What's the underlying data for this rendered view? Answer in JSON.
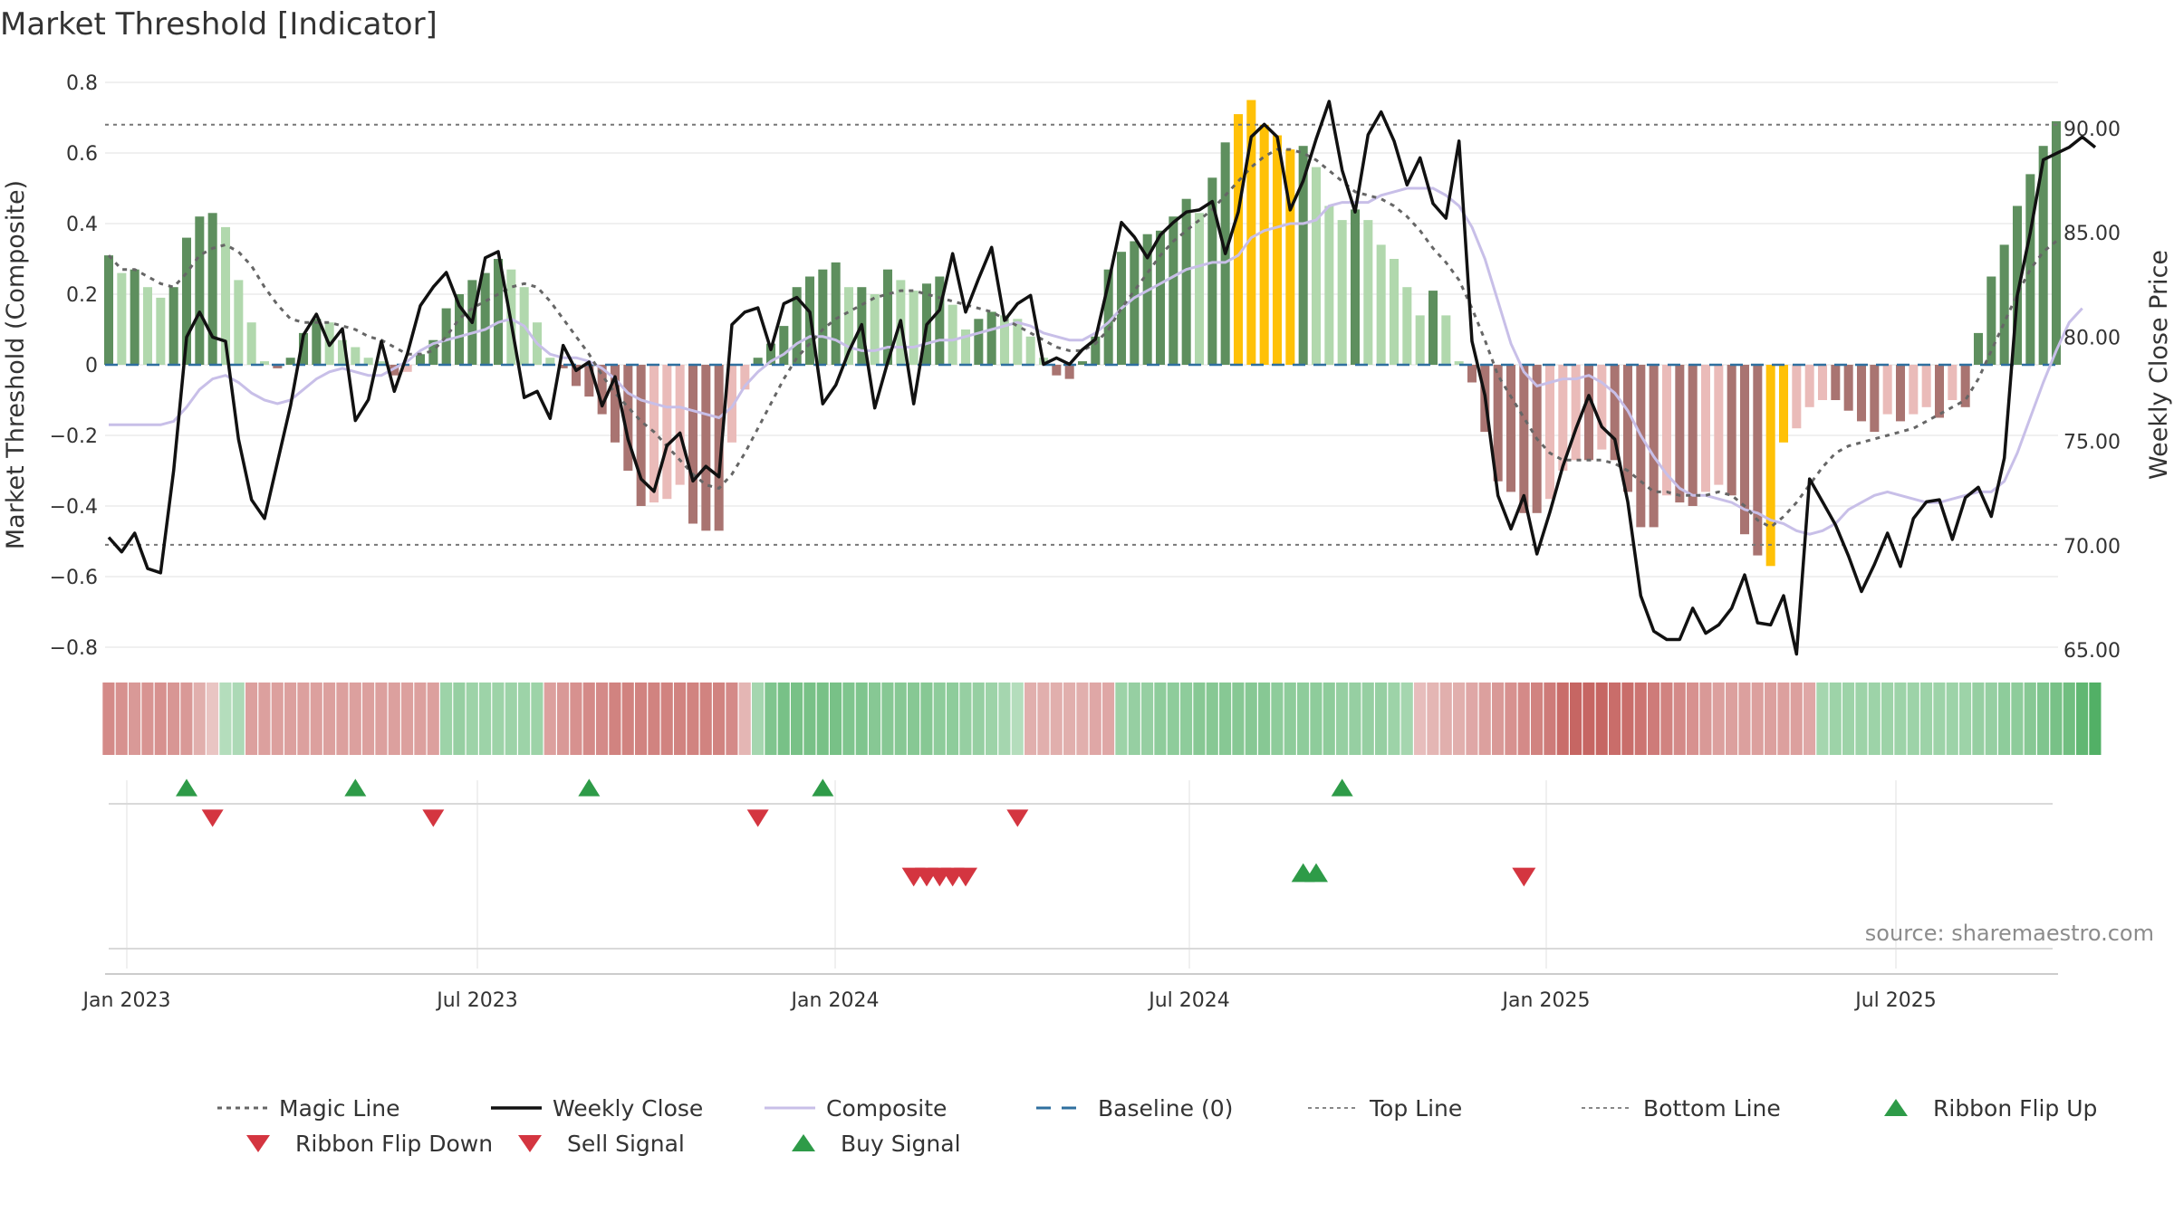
{
  "chart_data": {
    "type": "combo-bar-line",
    "title": "Market Threshold [Indicator]",
    "ylabel_left": "Market Threshold (Composite)",
    "ylabel_right": "Weekly Close Price",
    "source": "source: sharemaestro.com",
    "ylim_left": [
      -0.8,
      0.8
    ],
    "ylim_right": [
      65,
      92
    ],
    "left_ticks": [
      "0.8",
      "0.6",
      "0.4",
      "0.2",
      "0",
      "−0.2",
      "−0.4",
      "−0.6",
      "−0.8"
    ],
    "right_ticks": [
      "90.00",
      "85.00",
      "80.00",
      "75.00",
      "70.00",
      "65.00"
    ],
    "x_ticks": [
      "Jan 2023",
      "Jul 2023",
      "Jan 2024",
      "Jul 2024",
      "Jan 2025",
      "Jul 2025"
    ],
    "top_line": 0.68,
    "bottom_line": -0.51,
    "colors": {
      "dark_green": "#5e8f5e",
      "light_green": "#b1d8ad",
      "dark_red": "#a97471",
      "light_red": "#eabbb9",
      "highlight": "#ffc107",
      "close": "#111111",
      "composite": "#c8bfe8",
      "magic": "#666666",
      "baseline": "#2f6f9f",
      "buy": "#2e9b48",
      "sell": "#d43540"
    },
    "histogram": [
      0.31,
      0.26,
      0.27,
      0.22,
      0.19,
      0.22,
      0.36,
      0.42,
      0.43,
      0.39,
      0.24,
      0.12,
      0.01,
      -0.01,
      0.02,
      0.09,
      0.13,
      0.12,
      0.07,
      0.05,
      0.02,
      0.01,
      -0.03,
      -0.02,
      0.03,
      0.07,
      0.16,
      0.2,
      0.24,
      0.26,
      0.3,
      0.27,
      0.22,
      0.12,
      0.02,
      -0.01,
      -0.06,
      -0.09,
      -0.14,
      -0.22,
      -0.3,
      -0.4,
      -0.39,
      -0.38,
      -0.34,
      -0.45,
      -0.47,
      -0.47,
      -0.22,
      -0.07,
      0.02,
      0.06,
      0.11,
      0.22,
      0.25,
      0.27,
      0.29,
      0.22,
      0.22,
      0.2,
      0.27,
      0.24,
      0.21,
      0.23,
      0.25,
      0.17,
      0.1,
      0.13,
      0.15,
      0.14,
      0.13,
      0.08,
      0.02,
      -0.03,
      -0.04,
      0.01,
      0.08,
      0.27,
      0.32,
      0.35,
      0.37,
      0.38,
      0.42,
      0.47,
      0.43,
      0.53,
      0.63,
      0.71,
      0.75,
      0.68,
      0.65,
      0.61,
      0.62,
      0.56,
      0.45,
      0.41,
      0.44,
      0.41,
      0.34,
      0.3,
      0.22,
      0.14,
      0.21,
      0.14,
      0.01,
      -0.05,
      -0.19,
      -0.33,
      -0.36,
      -0.42,
      -0.42,
      -0.38,
      -0.3,
      -0.27,
      -0.27,
      -0.24,
      -0.27,
      -0.36,
      -0.46,
      -0.46,
      -0.37,
      -0.39,
      -0.4,
      -0.36,
      -0.34,
      -0.37,
      -0.48,
      -0.54,
      -0.57,
      -0.22,
      -0.18,
      -0.12,
      -0.1,
      -0.1,
      -0.13,
      -0.16,
      -0.19,
      -0.14,
      -0.16,
      -0.14,
      -0.12,
      -0.15,
      -0.1,
      -0.12,
      0.09,
      0.25,
      0.34,
      0.45,
      0.54,
      0.62,
      0.69
    ],
    "highlight_bars": [
      87,
      88,
      89,
      90,
      91,
      128,
      129,
      152
    ],
    "weekly_close": [
      70.4,
      69.7,
      70.6,
      68.9,
      68.7,
      73.6,
      80.0,
      81.2,
      80.0,
      79.8,
      75.1,
      72.2,
      71.3,
      74.0,
      76.7,
      80.1,
      81.1,
      79.6,
      80.4,
      76.0,
      77.0,
      79.8,
      77.4,
      79.2,
      81.5,
      82.4,
      83.1,
      81.5,
      80.7,
      83.8,
      84.1,
      80.7,
      77.1,
      77.4,
      76.1,
      79.6,
      78.4,
      78.8,
      76.7,
      78.1,
      75.1,
      73.2,
      72.6,
      74.8,
      75.4,
      73.1,
      73.8,
      73.3,
      80.6,
      81.2,
      81.4,
      79.4,
      81.6,
      81.9,
      81.2,
      76.8,
      77.7,
      79.3,
      80.6,
      76.6,
      78.8,
      80.8,
      76.8,
      80.6,
      81.3,
      84.0,
      81.2,
      82.8,
      84.3,
      80.8,
      81.6,
      82.0,
      78.7,
      79.0,
      78.7,
      79.4,
      79.9,
      82.6,
      85.5,
      84.8,
      83.8,
      84.9,
      85.5,
      86.0,
      86.1,
      86.5,
      84.0,
      86.0,
      89.6,
      90.2,
      89.6,
      86.1,
      87.5,
      89.5,
      91.3,
      88.0,
      86.0,
      89.7,
      90.8,
      89.4,
      87.3,
      88.6,
      86.4,
      85.7,
      89.4,
      79.8,
      77.2,
      72.4,
      70.8,
      72.4,
      69.6,
      71.6,
      73.8,
      75.6,
      77.2,
      75.7,
      75.1,
      72.1,
      67.6,
      65.9,
      65.5,
      65.5,
      67.0,
      65.8,
      66.2,
      67.0,
      68.6,
      66.3,
      66.2,
      67.6,
      64.8,
      73.2,
      72.1,
      71.0,
      69.5,
      67.8,
      69.1,
      70.6,
      69.0,
      71.3,
      72.1,
      72.2,
      70.3,
      72.3,
      72.8,
      71.4,
      74.2,
      82.0,
      85.0,
      88.5,
      88.8,
      89.1,
      89.6,
      89.1
    ],
    "composite": [
      -0.17,
      -0.17,
      -0.17,
      -0.17,
      -0.17,
      -0.16,
      -0.12,
      -0.07,
      -0.04,
      -0.03,
      -0.05,
      -0.08,
      -0.1,
      -0.11,
      -0.1,
      -0.07,
      -0.04,
      -0.02,
      -0.01,
      -0.02,
      -0.03,
      -0.03,
      -0.01,
      0.01,
      0.04,
      0.06,
      0.07,
      0.08,
      0.09,
      0.1,
      0.12,
      0.13,
      0.11,
      0.06,
      0.03,
      0.02,
      0.02,
      0.01,
      -0.01,
      -0.04,
      -0.08,
      -0.1,
      -0.11,
      -0.12,
      -0.12,
      -0.13,
      -0.14,
      -0.15,
      -0.12,
      -0.06,
      -0.02,
      0.01,
      0.03,
      0.06,
      0.08,
      0.08,
      0.07,
      0.05,
      0.04,
      0.04,
      0.05,
      0.05,
      0.05,
      0.06,
      0.07,
      0.07,
      0.08,
      0.09,
      0.1,
      0.11,
      0.12,
      0.11,
      0.09,
      0.08,
      0.07,
      0.07,
      0.09,
      0.12,
      0.16,
      0.19,
      0.21,
      0.23,
      0.25,
      0.27,
      0.28,
      0.29,
      0.29,
      0.31,
      0.36,
      0.38,
      0.39,
      0.4,
      0.4,
      0.41,
      0.45,
      0.46,
      0.46,
      0.46,
      0.48,
      0.49,
      0.5,
      0.5,
      0.5,
      0.48,
      0.45,
      0.39,
      0.3,
      0.18,
      0.06,
      -0.02,
      -0.06,
      -0.05,
      -0.04,
      -0.04,
      -0.03,
      -0.05,
      -0.08,
      -0.13,
      -0.2,
      -0.26,
      -0.31,
      -0.35,
      -0.37,
      -0.37,
      -0.38,
      -0.39,
      -0.41,
      -0.42,
      -0.44,
      -0.45,
      -0.47,
      -0.48,
      -0.47,
      -0.45,
      -0.41,
      -0.39,
      -0.37,
      -0.36,
      -0.37,
      -0.38,
      -0.39,
      -0.39,
      -0.38,
      -0.37,
      -0.36,
      -0.36,
      -0.33,
      -0.25,
      -0.15,
      -0.05,
      0.04,
      0.12,
      0.16
    ],
    "magic": [
      0.31,
      0.27,
      0.27,
      0.25,
      0.23,
      0.22,
      0.26,
      0.31,
      0.33,
      0.34,
      0.32,
      0.28,
      0.22,
      0.17,
      0.13,
      0.12,
      0.12,
      0.12,
      0.11,
      0.1,
      0.08,
      0.07,
      0.05,
      0.03,
      0.03,
      0.04,
      0.08,
      0.13,
      0.16,
      0.18,
      0.2,
      0.22,
      0.23,
      0.22,
      0.18,
      0.13,
      0.08,
      0.03,
      -0.03,
      -0.08,
      -0.12,
      -0.16,
      -0.19,
      -0.23,
      -0.27,
      -0.31,
      -0.34,
      -0.35,
      -0.31,
      -0.25,
      -0.18,
      -0.11,
      -0.04,
      0.02,
      0.06,
      0.1,
      0.13,
      0.15,
      0.17,
      0.19,
      0.2,
      0.21,
      0.21,
      0.2,
      0.19,
      0.18,
      0.17,
      0.16,
      0.15,
      0.13,
      0.11,
      0.09,
      0.07,
      0.05,
      0.04,
      0.04,
      0.06,
      0.1,
      0.16,
      0.21,
      0.26,
      0.31,
      0.35,
      0.38,
      0.41,
      0.44,
      0.48,
      0.52,
      0.56,
      0.59,
      0.61,
      0.61,
      0.6,
      0.58,
      0.55,
      0.52,
      0.49,
      0.48,
      0.47,
      0.45,
      0.42,
      0.38,
      0.33,
      0.29,
      0.24,
      0.16,
      0.07,
      -0.03,
      -0.09,
      -0.15,
      -0.21,
      -0.25,
      -0.27,
      -0.27,
      -0.27,
      -0.27,
      -0.28,
      -0.3,
      -0.33,
      -0.36,
      -0.36,
      -0.37,
      -0.37,
      -0.37,
      -0.36,
      -0.37,
      -0.4,
      -0.44,
      -0.46,
      -0.43,
      -0.39,
      -0.34,
      -0.29,
      -0.25,
      -0.23,
      -0.22,
      -0.21,
      -0.2,
      -0.19,
      -0.18,
      -0.16,
      -0.14,
      -0.12,
      -0.1,
      -0.04,
      0.04,
      0.12,
      0.2,
      0.27,
      0.32,
      0.35
    ],
    "ribbon": [
      -0.55,
      -0.5,
      -0.45,
      -0.48,
      -0.5,
      -0.47,
      -0.45,
      -0.3,
      -0.15,
      0.25,
      0.3,
      -0.4,
      -0.4,
      -0.4,
      -0.4,
      -0.4,
      -0.4,
      -0.4,
      -0.4,
      -0.4,
      -0.4,
      -0.4,
      -0.4,
      -0.4,
      -0.4,
      -0.4,
      0.4,
      0.45,
      0.4,
      0.4,
      0.4,
      0.4,
      0.4,
      0.4,
      -0.4,
      -0.45,
      -0.5,
      -0.55,
      -0.55,
      -0.6,
      -0.6,
      -0.6,
      -0.6,
      -0.6,
      -0.6,
      -0.6,
      -0.6,
      -0.6,
      -0.55,
      -0.25,
      0.35,
      0.6,
      0.65,
      0.65,
      0.65,
      0.65,
      0.65,
      0.6,
      0.6,
      0.55,
      0.55,
      0.55,
      0.55,
      0.55,
      0.5,
      0.5,
      0.45,
      0.45,
      0.4,
      0.35,
      0.25,
      -0.3,
      -0.3,
      -0.3,
      -0.3,
      -0.3,
      -0.35,
      -0.35,
      0.4,
      0.45,
      0.45,
      0.5,
      0.5,
      0.5,
      0.55,
      0.55,
      0.55,
      0.55,
      0.55,
      0.55,
      0.5,
      0.5,
      0.5,
      0.5,
      0.5,
      0.45,
      0.45,
      0.45,
      0.45,
      0.4,
      0.35,
      -0.2,
      -0.25,
      -0.3,
      -0.3,
      -0.35,
      -0.4,
      -0.45,
      -0.5,
      -0.55,
      -0.6,
      -0.65,
      -0.75,
      -0.8,
      -0.8,
      -0.8,
      -0.75,
      -0.75,
      -0.7,
      -0.65,
      -0.6,
      -0.55,
      -0.5,
      -0.45,
      -0.4,
      -0.4,
      -0.4,
      -0.4,
      -0.4,
      -0.4,
      -0.4,
      -0.35,
      0.35,
      0.4,
      0.4,
      0.4,
      0.4,
      0.4,
      0.4,
      0.4,
      0.4,
      0.4,
      0.4,
      0.4,
      0.45,
      0.45,
      0.5,
      0.5,
      0.55,
      0.6,
      0.65,
      0.7,
      0.8,
      0.9
    ],
    "buy_signals": [
      6,
      19,
      37,
      55,
      95
    ],
    "sell_signals": [
      8,
      25,
      50,
      70
    ],
    "ribbon_flip_up": [
      92,
      93
    ],
    "ribbon_flip_down": [
      62,
      63,
      64,
      65,
      66,
      109
    ],
    "legend": [
      {
        "label": "Magic Line",
        "kind": "dotted"
      },
      {
        "label": "Weekly Close",
        "kind": "solid"
      },
      {
        "label": "Composite",
        "kind": "composite"
      },
      {
        "label": "Baseline (0)",
        "kind": "dashed"
      },
      {
        "label": "Top Line",
        "kind": "thin-dotted"
      },
      {
        "label": "Bottom Line",
        "kind": "thin-dotted"
      },
      {
        "label": "Ribbon Flip Up",
        "kind": "tri-up-green"
      },
      {
        "label": "Ribbon Flip Down",
        "kind": "tri-down-red"
      },
      {
        "label": "Sell Signal",
        "kind": "tri-down-red"
      },
      {
        "label": "Buy Signal",
        "kind": "tri-up-green"
      }
    ]
  }
}
